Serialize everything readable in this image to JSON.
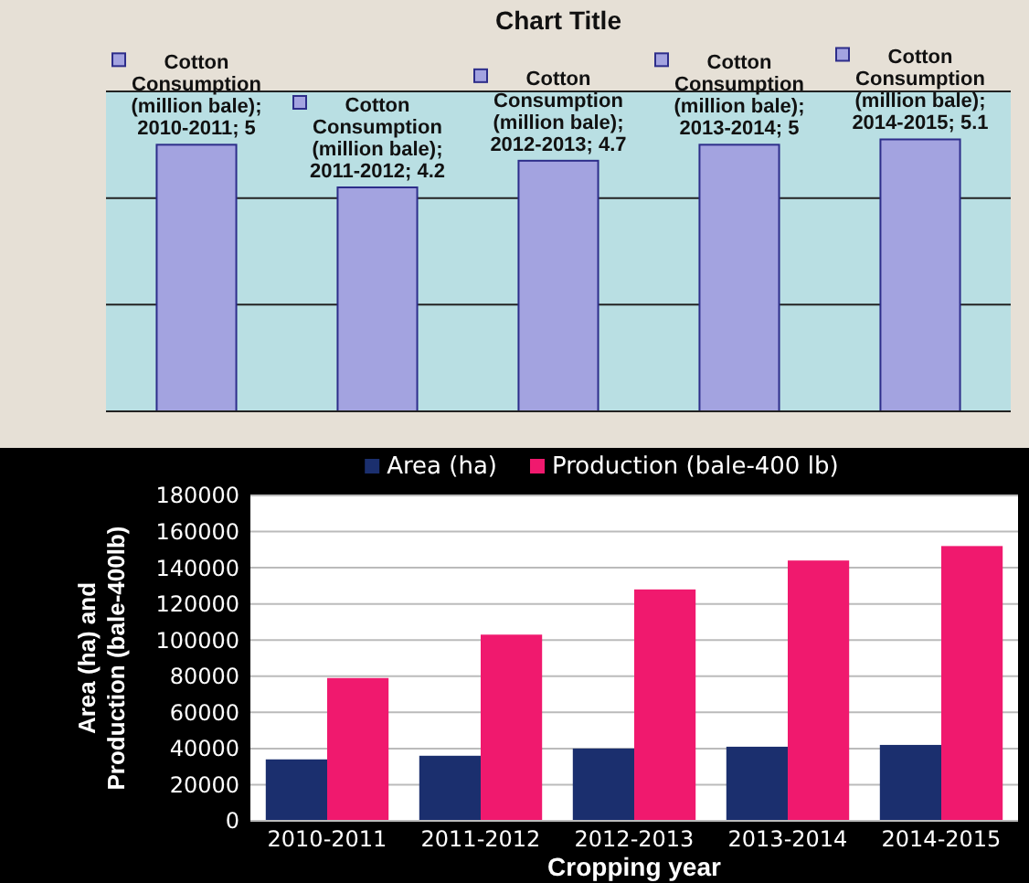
{
  "chart_data": [
    {
      "type": "bar",
      "title": "Chart Title",
      "categories": [
        null,
        null,
        null,
        null,
        null
      ],
      "series": [
        {
          "color": "#a3a3e0",
          "values": [
            5,
            4.2,
            4.7,
            5,
            5.1
          ],
          "value_labels": [
            "Cotton Consumption (million bale); 2010-2011; 5",
            "Cotton Consumption (million bale); 2011-2012; 4.2",
            "Cotton Consumption (million bale); 2012-2013; 4.7",
            "Cotton Consumption (million bale); 2013-2014; 5",
            "Cotton Consumption (million bale); 2014-2015; 5.1"
          ]
        }
      ],
      "ylim": [
        0,
        6
      ],
      "yticks": [
        {
          "value": 0,
          "label": null
        },
        {
          "value": 2,
          "label": null
        },
        {
          "value": 4,
          "label": null
        },
        {
          "value": 6,
          "label": null
        }
      ],
      "grid": "y"
    },
    {
      "type": "bar",
      "xlabel": "Cropping year",
      "ylabel": "Area (ha) and\nProduction (bale-400lb)",
      "categories": [
        "2010-2011",
        "2011-2012",
        "2012-2013",
        "2013-2014",
        "2014-2015"
      ],
      "series": [
        {
          "name": "Area (ha)",
          "color": "#1b2f6e",
          "values": [
            34000,
            36000,
            40000,
            41000,
            42000
          ]
        },
        {
          "name": "Production (bale-400 lb)",
          "color": "#f0196e",
          "values": [
            79000,
            103000,
            128000,
            144000,
            152000
          ]
        }
      ],
      "ylim": [
        0,
        180000
      ],
      "yticks": [
        0,
        20000,
        40000,
        60000,
        80000,
        100000,
        120000,
        140000,
        160000,
        180000
      ],
      "grid": "y",
      "legend": "top"
    }
  ]
}
